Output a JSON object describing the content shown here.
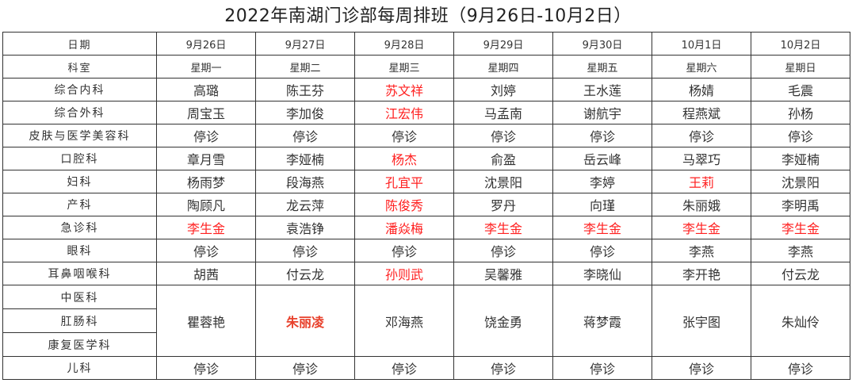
{
  "title": "2022年南湖门诊部每周排班（9月26日-10月2日）",
  "colors": {
    "highlight": "#ff2020",
    "highlight_bold": "#e8412c",
    "text": "#333333"
  },
  "header": {
    "date_label": "日期",
    "dates": [
      "9月26日",
      "9月27日",
      "9月28日",
      "9月29日",
      "9月30日",
      "10月1日",
      "10月2日"
    ],
    "dept_label": "科室",
    "weekdays": [
      "星期一",
      "星期二",
      "星期三",
      "星期四",
      "星期五",
      "星期六",
      "星期日"
    ]
  },
  "rows": [
    {
      "dept": "综合内科",
      "cells": [
        {
          "t": "高璐"
        },
        {
          "t": "陈王芬"
        },
        {
          "t": "苏文祥",
          "red": true
        },
        {
          "t": "刘婷"
        },
        {
          "t": "王水莲"
        },
        {
          "t": "杨婧"
        },
        {
          "t": "毛震"
        }
      ]
    },
    {
      "dept": "综合外科",
      "cells": [
        {
          "t": "周宝玉"
        },
        {
          "t": "李加俊"
        },
        {
          "t": "江宏伟",
          "red": true
        },
        {
          "t": "马孟南"
        },
        {
          "t": "谢航宇"
        },
        {
          "t": "程燕斌"
        },
        {
          "t": "孙杨"
        }
      ]
    },
    {
      "dept": "皮肤与医学美容科",
      "cells": [
        {
          "t": "停诊"
        },
        {
          "t": "停诊"
        },
        {
          "t": "停诊"
        },
        {
          "t": "停诊"
        },
        {
          "t": "停诊"
        },
        {
          "t": "停诊"
        },
        {
          "t": "停诊"
        }
      ]
    },
    {
      "dept": "口腔科",
      "cells": [
        {
          "t": "章月雪"
        },
        {
          "t": "李娅楠"
        },
        {
          "t": "杨杰",
          "red": true
        },
        {
          "t": "俞盈"
        },
        {
          "t": "岳云峰"
        },
        {
          "t": "马翠巧"
        },
        {
          "t": "李娅楠"
        }
      ]
    },
    {
      "dept": "妇科",
      "cells": [
        {
          "t": "杨雨梦"
        },
        {
          "t": "段海燕"
        },
        {
          "t": "孔宜平",
          "red": true
        },
        {
          "t": "沈景阳"
        },
        {
          "t": "李婷"
        },
        {
          "t": "王莉",
          "red": true
        },
        {
          "t": "沈景阳"
        }
      ]
    },
    {
      "dept": "产科",
      "cells": [
        {
          "t": "陶顾凡"
        },
        {
          "t": "龙云萍"
        },
        {
          "t": "陈俊秀",
          "red": true
        },
        {
          "t": "罗丹"
        },
        {
          "t": "向瑾"
        },
        {
          "t": "朱丽娥"
        },
        {
          "t": "李明禹"
        }
      ]
    },
    {
      "dept": "急诊科",
      "cells": [
        {
          "t": "李生金",
          "red": true
        },
        {
          "t": "袁浩铮"
        },
        {
          "t": "潘焱梅",
          "red": true
        },
        {
          "t": "李生金",
          "red": true
        },
        {
          "t": "李生金",
          "red": true
        },
        {
          "t": "李生金",
          "red": true
        },
        {
          "t": "李生金",
          "red": true
        }
      ]
    },
    {
      "dept": "眼科",
      "cells": [
        {
          "t": "停诊"
        },
        {
          "t": "停诊"
        },
        {
          "t": "停诊"
        },
        {
          "t": "停诊"
        },
        {
          "t": "停诊"
        },
        {
          "t": "李燕"
        },
        {
          "t": "李燕"
        }
      ]
    },
    {
      "dept": "耳鼻咽喉科",
      "cells": [
        {
          "t": "胡茜"
        },
        {
          "t": "付云龙"
        },
        {
          "t": "孙则武",
          "red": true
        },
        {
          "t": "吴馨雅"
        },
        {
          "t": "李晓仙"
        },
        {
          "t": "李开艳"
        },
        {
          "t": "付云龙"
        }
      ]
    }
  ],
  "merged": {
    "depts": [
      "中医科",
      "肛肠科",
      "康复医学科"
    ],
    "cells": [
      {
        "t": "瞿蓉艳"
      },
      {
        "t": "朱丽凌",
        "bold": true
      },
      {
        "t": "邓海燕"
      },
      {
        "t": "饶金勇"
      },
      {
        "t": "蒋梦霞"
      },
      {
        "t": "张宇图"
      },
      {
        "t": "朱灿伶"
      }
    ]
  },
  "last_row": {
    "dept": "儿科",
    "cells": [
      {
        "t": "停诊"
      },
      {
        "t": "停诊"
      },
      {
        "t": "停诊"
      },
      {
        "t": "停诊"
      },
      {
        "t": "停诊"
      },
      {
        "t": "停诊"
      },
      {
        "t": "停诊"
      }
    ]
  }
}
